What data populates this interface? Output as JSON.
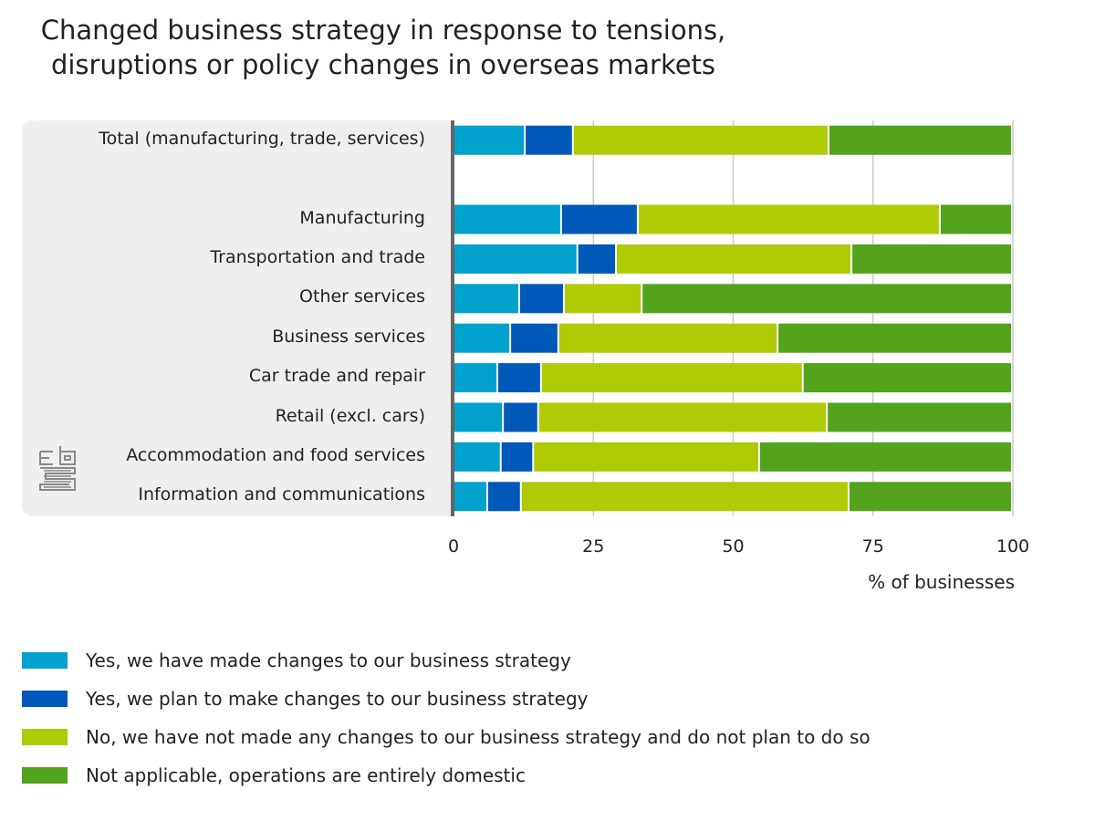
{
  "chart_data": {
    "type": "bar",
    "orientation": "horizontal",
    "stacked": true,
    "title": "Changed business strategy in response to tensions, disruptions or policy changes in overseas markets",
    "title_lines": [
      "Changed business strategy in response to tensions,",
      "disruptions or policy changes in overseas markets"
    ],
    "xlabel": "% of businesses",
    "ylabel": "",
    "xlim": [
      0,
      100
    ],
    "xticks": [
      0,
      25,
      50,
      75,
      100
    ],
    "grid": true,
    "legend_position": "bottom-left",
    "categories": [
      "Total (manufacturing, trade, services)",
      "",
      "Manufacturing",
      "Transportation and trade",
      "Other services",
      "Business services",
      "Car trade and repair",
      "Retail (excl. cars)",
      "Accommodation and food services",
      "Information and communications"
    ],
    "series": [
      {
        "name": "Yes, we have made changes to our business strategy",
        "color": "#00a1cd",
        "values": [
          12.9,
          null,
          19.4,
          22.3,
          11.9,
          10.3,
          8.0,
          9.0,
          8.6,
          6.2
        ]
      },
      {
        "name": "Yes, we plan to make changes to our business strategy",
        "color": "#0058b8",
        "values": [
          8.6,
          null,
          13.7,
          6.9,
          8.0,
          8.6,
          7.8,
          6.3,
          5.8,
          6.0
        ]
      },
      {
        "name": "No, we have not made any changes to our business strategy and do not plan to do so",
        "color": "#afcb05",
        "values": [
          45.7,
          null,
          54.0,
          42.1,
          13.9,
          39.2,
          46.8,
          51.6,
          40.4,
          58.6
        ]
      },
      {
        "name": "Not applicable, operations are entirely domestic",
        "color": "#53a31d",
        "values": [
          32.8,
          null,
          12.9,
          28.7,
          66.2,
          41.9,
          37.4,
          33.1,
          45.2,
          29.2
        ]
      }
    ]
  },
  "logo": {
    "name": "cbs"
  }
}
